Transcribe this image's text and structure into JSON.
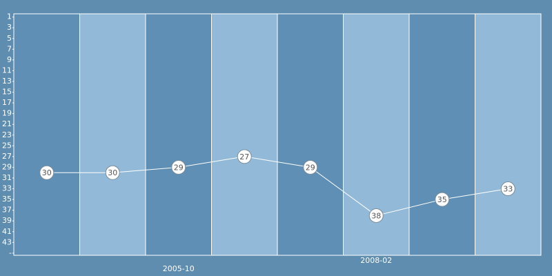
{
  "chart_data": {
    "type": "line",
    "categories": [
      null,
      null,
      "2005-10",
      null,
      null,
      "2008-02",
      null,
      null
    ],
    "values": [
      30,
      30,
      29,
      27,
      29,
      38,
      35,
      33
    ],
    "color": "#ffffff",
    "band_colors": [
      "#5f8fb4",
      "#93b9d8"
    ],
    "ylim": [
      0.4,
      45.4
    ],
    "inverted": true,
    "yticks": [
      1,
      3,
      5,
      7,
      9,
      11,
      13,
      15,
      17,
      19,
      21,
      23,
      25,
      27,
      29,
      31,
      33,
      35,
      37,
      39,
      41,
      43,
      {
        "value": 45,
        "label": "-"
      }
    ]
  }
}
